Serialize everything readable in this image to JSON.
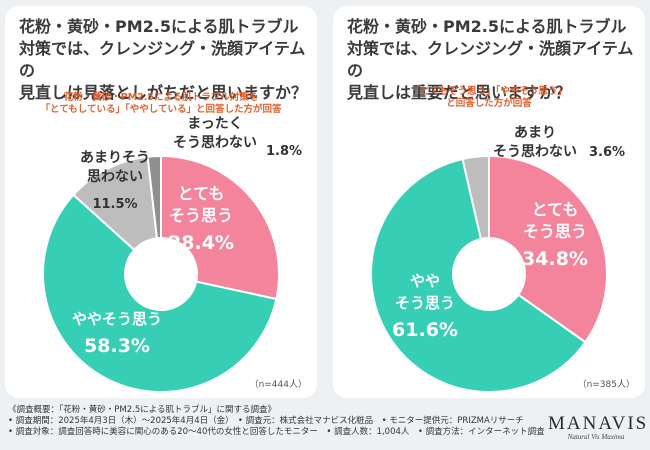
{
  "chart_data": [
    {
      "type": "pie",
      "title": "花粉・黄砂・PM2.5による肌トラブル対策では、クレンジング・洗顔アイテムの見直しは見落としがちだと思いますか？",
      "title_lines": [
        "花粉・黄砂・PM2.5による肌トラブル",
        "対策では、クレンジング・洗顔アイテムの",
        "見直しは見落としがちだと思いますか？"
      ],
      "note_lines": [
        "花粉・黄砂・PM2.5による肌トラブル対策を",
        "「とてもしている」「ややしている」と回答した方が回答"
      ],
      "sample": "（n=444人）",
      "slices": [
        {
          "label_lines": [
            "とても",
            "そう思う"
          ],
          "value": 28.4,
          "value_text": "28.4%",
          "color": "#f4839c",
          "text_color": "#ffffff"
        },
        {
          "label_lines": [
            "ややそう思う"
          ],
          "value": 58.3,
          "value_text": "58.3%",
          "color": "#36cfb5",
          "text_color": "#ffffff"
        },
        {
          "label_lines": [
            "あまりそう",
            "思わない"
          ],
          "value": 11.5,
          "value_text": "11.5%",
          "color": "#bdbdbd",
          "text_color": "#333333"
        },
        {
          "label_lines": [
            "まったく",
            "そう思わない"
          ],
          "value": 1.8,
          "value_text": "1.8%",
          "color": "#8f8f8f",
          "text_color": "#333333"
        }
      ]
    },
    {
      "type": "pie",
      "title": "花粉・黄砂・PM2.5による肌トラブル対策では、クレンジング・洗顔アイテムの見直しは重要だと思いますか？",
      "title_lines": [
        "花粉・黄砂・PM2.5による肌トラブル",
        "対策では、クレンジング・洗顔アイテムの",
        "見直しは重要だと思いますか？"
      ],
      "note_lines": [
        "「とてもそう思う」「ややそう思う」",
        "と回答した方が回答"
      ],
      "sample": "（n=385人）",
      "slices": [
        {
          "label_lines": [
            "とても",
            "そう思う"
          ],
          "value": 34.8,
          "value_text": "34.8%",
          "color": "#f4839c",
          "text_color": "#ffffff"
        },
        {
          "label_lines": [
            "やや",
            "そう思う"
          ],
          "value": 61.6,
          "value_text": "61.6%",
          "color": "#36cfb5",
          "text_color": "#ffffff"
        },
        {
          "label_lines": [
            "あまり",
            "そう思わない"
          ],
          "value": 3.6,
          "value_text": "3.6%",
          "color": "#bdbdbd",
          "text_color": "#333333"
        }
      ]
    }
  ],
  "footer": {
    "line1": "《調査概要：「花粉・黄砂・PM2.5による肌トラブル」に関する調査》",
    "line2": "• 調査期間：2025年4月3日（木）〜2025年4月4日（金）　• 調査元：株式会社マナビス化粧品　• モニター提供元：PRIZMAリサーチ",
    "line3": "• 調査対象：調査回答時に美容に関心のある20〜40代の女性と回答したモニター　• 調査人数：1,004人　• 調査方法：インターネット調査"
  },
  "logo": {
    "main": "MANAVIS",
    "tagline": "Natural Vis Maxima"
  }
}
